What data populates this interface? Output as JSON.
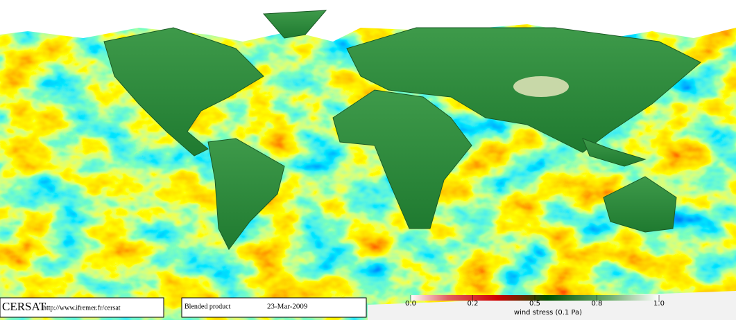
{
  "footer": {
    "logo": "CERSAT",
    "url": "http://www.ifremer.fr/cersat",
    "product": "Blended product",
    "date": "23-Mar-2009"
  },
  "legend": {
    "title": "wind stress (0.1 Pa)",
    "ticks": [
      {
        "value": 0,
        "label": "0.0"
      },
      0.2,
      0.5,
      0.8,
      {
        "value": 1,
        "label": "1.0"
      }
    ]
  }
}
